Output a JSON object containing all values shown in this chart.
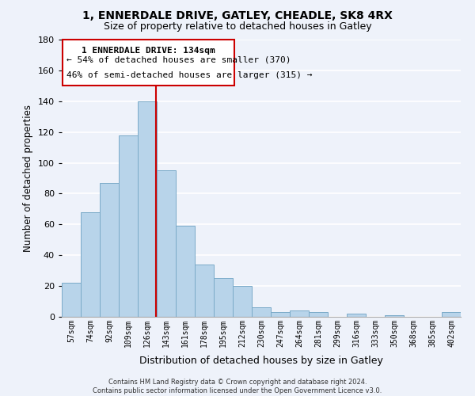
{
  "title1": "1, ENNERDALE DRIVE, GATLEY, CHEADLE, SK8 4RX",
  "title2": "Size of property relative to detached houses in Gatley",
  "xlabel": "Distribution of detached houses by size in Gatley",
  "ylabel": "Number of detached properties",
  "categories": [
    "57sqm",
    "74sqm",
    "92sqm",
    "109sqm",
    "126sqm",
    "143sqm",
    "161sqm",
    "178sqm",
    "195sqm",
    "212sqm",
    "230sqm",
    "247sqm",
    "264sqm",
    "281sqm",
    "299sqm",
    "316sqm",
    "333sqm",
    "350sqm",
    "368sqm",
    "385sqm",
    "402sqm"
  ],
  "values": [
    22,
    68,
    87,
    118,
    140,
    95,
    59,
    34,
    25,
    20,
    6,
    3,
    4,
    3,
    0,
    2,
    0,
    1,
    0,
    0,
    3
  ],
  "bar_color": "#b8d4ea",
  "bar_edge_color": "#7aaac8",
  "marker_color": "#cc0000",
  "ylim": [
    0,
    180
  ],
  "yticks": [
    0,
    20,
    40,
    60,
    80,
    100,
    120,
    140,
    160,
    180
  ],
  "annotation_title": "1 ENNERDALE DRIVE: 134sqm",
  "annotation_line1": "← 54% of detached houses are smaller (370)",
  "annotation_line2": "46% of semi-detached houses are larger (315) →",
  "annotation_box_color": "#ffffff",
  "annotation_box_edge": "#cc0000",
  "footer1": "Contains HM Land Registry data © Crown copyright and database right 2024.",
  "footer2": "Contains public sector information licensed under the Open Government Licence v3.0.",
  "background_color": "#eef2fa",
  "grid_color": "#ffffff"
}
